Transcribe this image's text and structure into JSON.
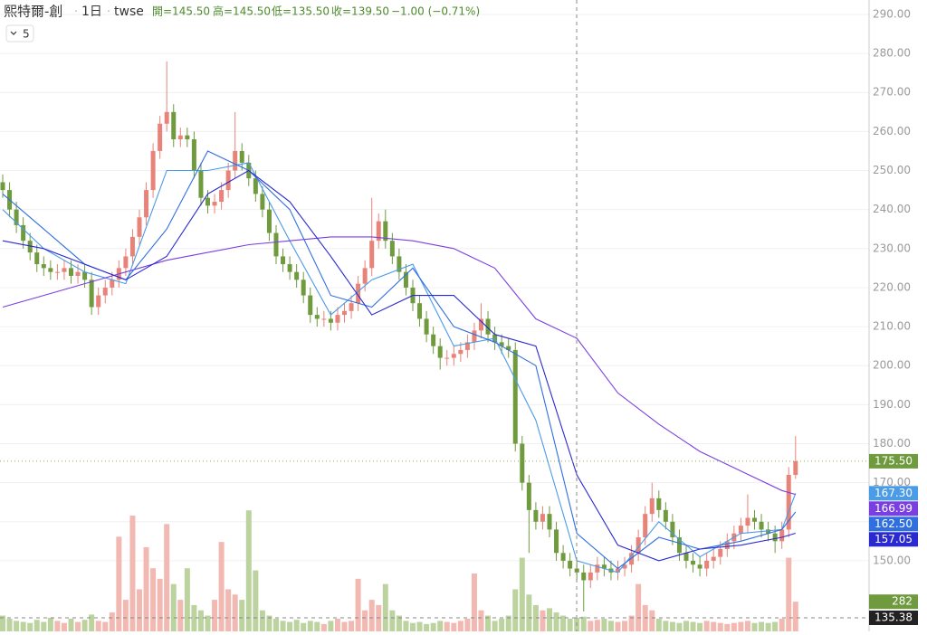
{
  "header": {
    "symbol": "熙特爾-創",
    "interval": "1日",
    "exchange": "twse",
    "open": "開=145.50",
    "high": "高=145.50",
    "low": "低=135.50",
    "close": "收=139.50",
    "change": "−1.00 (−0.71%)",
    "ma_toggle": "5"
  },
  "chart_data": {
    "type": "candlestick",
    "open": [
      247,
      245,
      240,
      236,
      232,
      229,
      226,
      225,
      224,
      224,
      225,
      223,
      224,
      222,
      215,
      218,
      220,
      222,
      225,
      228,
      233,
      238,
      245,
      255,
      262,
      265,
      258,
      259,
      258,
      250,
      243,
      241,
      242,
      245,
      250,
      255,
      252,
      248,
      244,
      240,
      234,
      228,
      226,
      224,
      222,
      218,
      213,
      212,
      212,
      211,
      213,
      214,
      216,
      221,
      225,
      232,
      237,
      232,
      228,
      224,
      220,
      216,
      212,
      208,
      205,
      202,
      202,
      203,
      204,
      206,
      209,
      212,
      208,
      206,
      205,
      204,
      180,
      170,
      163,
      160,
      162,
      158,
      152,
      150,
      148,
      147,
      145,
      147,
      149,
      148,
      147,
      148,
      149,
      152,
      156,
      162,
      166,
      163,
      160,
      156,
      152,
      150,
      149,
      148,
      150,
      151,
      153,
      155,
      157,
      159,
      161,
      160,
      158,
      157,
      155,
      158,
      172
    ],
    "high": [
      249,
      247,
      242,
      238,
      234,
      231,
      228,
      227,
      226,
      227,
      227,
      226,
      226,
      224,
      220,
      222,
      224,
      227,
      230,
      235,
      240,
      247,
      257,
      264,
      278,
      267,
      261,
      261,
      260,
      252,
      245,
      244,
      247,
      252,
      265,
      257,
      254,
      250,
      246,
      242,
      236,
      230,
      228,
      226,
      224,
      220,
      215,
      214,
      214,
      215,
      216,
      218,
      223,
      227,
      243,
      239,
      240,
      234,
      230,
      226,
      222,
      218,
      214,
      210,
      207,
      204,
      205,
      206,
      208,
      211,
      216,
      214,
      210,
      208,
      207,
      206,
      182,
      172,
      165,
      164,
      164,
      160,
      154,
      152,
      150,
      149,
      149,
      151,
      151,
      150,
      150,
      151,
      154,
      158,
      164,
      170,
      168,
      165,
      162,
      158,
      154,
      152,
      151,
      152,
      153,
      155,
      157,
      159,
      161,
      167,
      163,
      162,
      160,
      159,
      160,
      174,
      182
    ],
    "low": [
      243,
      238,
      234,
      230,
      227,
      224,
      223,
      222,
      222,
      222,
      221,
      221,
      220,
      213,
      213,
      216,
      218,
      220,
      223,
      226,
      231,
      236,
      243,
      253,
      260,
      256,
      256,
      256,
      248,
      241,
      239,
      239,
      240,
      243,
      248,
      250,
      246,
      242,
      238,
      232,
      226,
      224,
      222,
      220,
      216,
      211,
      210,
      210,
      209,
      209,
      211,
      212,
      214,
      219,
      223,
      230,
      230,
      226,
      222,
      218,
      214,
      210,
      206,
      203,
      199,
      200,
      200,
      201,
      202,
      204,
      207,
      206,
      204,
      203,
      202,
      178,
      168,
      152,
      158,
      158,
      156,
      150,
      148,
      146,
      145,
      137,
      143,
      145,
      146,
      145,
      145,
      146,
      147,
      150,
      154,
      160,
      161,
      158,
      154,
      150,
      148,
      147,
      146,
      146,
      148,
      149,
      151,
      153,
      155,
      157,
      158,
      156,
      155,
      152,
      153,
      156,
      171
    ],
    "close": [
      245,
      240,
      236,
      232,
      229,
      226,
      225,
      224,
      224,
      225,
      223,
      224,
      222,
      215,
      218,
      220,
      222,
      225,
      228,
      233,
      238,
      245,
      255,
      262,
      265,
      258,
      259,
      258,
      250,
      243,
      241,
      242,
      245,
      250,
      255,
      252,
      248,
      244,
      240,
      234,
      228,
      226,
      224,
      222,
      218,
      213,
      212,
      212,
      211,
      213,
      214,
      216,
      221,
      225,
      232,
      237,
      232,
      228,
      224,
      220,
      216,
      212,
      208,
      205,
      202,
      202,
      203,
      204,
      206,
      209,
      212,
      208,
      206,
      205,
      204,
      180,
      170,
      163,
      160,
      162,
      158,
      152,
      150,
      148,
      147,
      145,
      147,
      149,
      148,
      147,
      148,
      149,
      152,
      156,
      162,
      166,
      163,
      160,
      156,
      152,
      150,
      149,
      148,
      150,
      151,
      153,
      155,
      157,
      159,
      161,
      160,
      158,
      157,
      155,
      158,
      172,
      175.5
    ],
    "volume": [
      150,
      120,
      100,
      90,
      80,
      110,
      90,
      130,
      100,
      80,
      120,
      90,
      110,
      160,
      100,
      90,
      180,
      900,
      300,
      1100,
      400,
      800,
      600,
      500,
      1020,
      450,
      300,
      600,
      250,
      200,
      150,
      300,
      850,
      400,
      350,
      300,
      1150,
      580,
      200,
      150,
      120,
      100,
      90,
      110,
      80,
      100,
      90,
      70,
      100,
      120,
      90,
      100,
      500,
      200,
      300,
      250,
      450,
      200,
      150,
      100,
      80,
      90,
      70,
      80,
      100,
      90,
      80,
      100,
      120,
      550,
      200,
      150,
      100,
      120,
      150,
      400,
      700,
      350,
      250,
      200,
      220,
      180,
      150,
      120,
      130,
      140,
      100,
      110,
      120,
      100,
      90,
      100,
      150,
      450,
      250,
      200,
      120,
      100,
      90,
      80,
      100,
      90,
      80,
      100,
      90,
      80,
      70,
      80,
      90,
      100,
      80,
      90,
      80,
      90,
      120,
      700,
      282
    ],
    "last_close_label": "175.50",
    "up_color": "#e8837a",
    "down_color": "#6f9a3e",
    "up_volume_color": "#f2b8b2",
    "down_volume_color": "#bcd3a0",
    "ylim": [
      131.9,
      293.7
    ],
    "vlim": [
      0,
      6000
    ],
    "yticks": [
      {
        "value": 150,
        "label": "150.00"
      },
      {
        "value": 160,
        "label": "160.00"
      },
      {
        "value": 170,
        "label": "170.00"
      },
      {
        "value": 180,
        "label": "180.00"
      },
      {
        "value": 190,
        "label": "190.00"
      },
      {
        "value": 200,
        "label": "200.00"
      },
      {
        "value": 210,
        "label": "210.00"
      },
      {
        "value": 220,
        "label": "220.00"
      },
      {
        "value": 230,
        "label": "230.00"
      },
      {
        "value": 240,
        "label": "240.00"
      },
      {
        "value": 250,
        "label": "250.00"
      },
      {
        "value": 260,
        "label": "260.00"
      },
      {
        "value": 270,
        "label": "270.00"
      },
      {
        "value": 280,
        "label": "280.00"
      },
      {
        "value": 290,
        "label": "290.00"
      }
    ],
    "grid": true,
    "crosshair": {
      "value": 135.38
    },
    "ma": [
      {
        "color": "#4a9be8",
        "x": [
          0,
          6,
          12,
          18,
          24,
          30,
          36,
          42,
          48,
          54,
          60,
          66,
          72,
          78,
          84,
          90,
          96,
          102,
          108,
          114,
          116
        ],
        "values": [
          240,
          230,
          224,
          221,
          250,
          250,
          252,
          232,
          213,
          222,
          226,
          205,
          207,
          186,
          150,
          147,
          160,
          151,
          157,
          158,
          167.3
        ],
        "last_label": "167.30"
      },
      {
        "color": "#7a3fe0",
        "x": [
          0,
          6,
          12,
          18,
          24,
          30,
          36,
          42,
          48,
          54,
          60,
          66,
          72,
          78,
          84,
          90,
          96,
          102,
          108,
          114,
          116
        ],
        "values": [
          215,
          218,
          221,
          224,
          227,
          229,
          231,
          232,
          233,
          233,
          232,
          230,
          225,
          212,
          207,
          193,
          185,
          178,
          173,
          168,
          166.99
        ],
        "last_label": "166.99"
      },
      {
        "color": "#2f6fe0",
        "x": [
          0,
          6,
          12,
          18,
          24,
          30,
          36,
          42,
          48,
          54,
          60,
          66,
          72,
          78,
          84,
          90,
          96,
          102,
          108,
          114,
          116
        ],
        "values": [
          244,
          235,
          226,
          222,
          235,
          255,
          250,
          240,
          218,
          215,
          225,
          210,
          206,
          200,
          157,
          148,
          156,
          153,
          155,
          158,
          162.5
        ],
        "last_label": "162.50"
      },
      {
        "color": "#2a2ad0",
        "x": [
          0,
          6,
          12,
          18,
          24,
          30,
          36,
          42,
          48,
          54,
          60,
          66,
          72,
          78,
          84,
          90,
          96,
          102,
          108,
          114,
          116
        ],
        "values": [
          232,
          230,
          226,
          222,
          228,
          244,
          250,
          242,
          228,
          213,
          218,
          218,
          208,
          205,
          172,
          154,
          150,
          153,
          154,
          156,
          157.05
        ],
        "last_label": "157.05"
      }
    ]
  }
}
